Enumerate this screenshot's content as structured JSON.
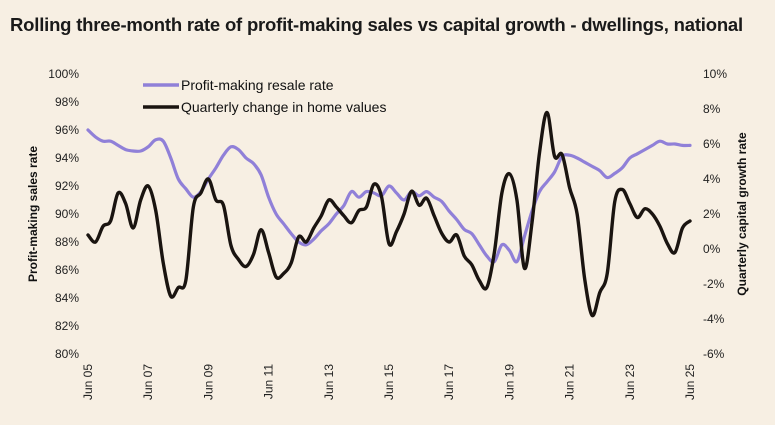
{
  "chart_data": {
    "type": "line",
    "title": "Rolling three-month rate of profit-making sales vs capital growth - dwellings, national",
    "xlabel": "",
    "ylabel": "Profit-making sales rate",
    "y2label": "Quarterly capital growth rate",
    "ylim": [
      80,
      100
    ],
    "y2lim": [
      -6,
      10
    ],
    "y_ticks": [
      "80%",
      "82%",
      "84%",
      "86%",
      "88%",
      "90%",
      "92%",
      "94%",
      "96%",
      "98%",
      "100%"
    ],
    "y2_ticks": [
      "-6%",
      "-4%",
      "-2%",
      "0%",
      "2%",
      "4%",
      "6%",
      "8%",
      "10%"
    ],
    "x_ticks": [
      "Jun 05",
      "Jun 07",
      "Jun 09",
      "Jun 11",
      "Jun 13",
      "Jun 15",
      "Jun 17",
      "Jun 19",
      "Jun 21",
      "Jun 23",
      "Jun 25"
    ],
    "x_range": [
      "Jun 05",
      "Jun 25"
    ],
    "grid": false,
    "legend_position": "top-left",
    "x": [
      2005.5,
      2005.75,
      2006.0,
      2006.25,
      2006.5,
      2006.75,
      2007.0,
      2007.25,
      2007.5,
      2007.75,
      2008.0,
      2008.25,
      2008.5,
      2008.75,
      2009.0,
      2009.25,
      2009.5,
      2009.75,
      2010.0,
      2010.25,
      2010.5,
      2010.75,
      2011.0,
      2011.25,
      2011.5,
      2011.75,
      2012.0,
      2012.25,
      2012.5,
      2012.75,
      2013.0,
      2013.25,
      2013.5,
      2013.75,
      2014.0,
      2014.25,
      2014.5,
      2014.75,
      2015.0,
      2015.25,
      2015.5,
      2015.75,
      2016.0,
      2016.25,
      2016.5,
      2016.75,
      2017.0,
      2017.25,
      2017.5,
      2017.75,
      2018.0,
      2018.25,
      2018.5,
      2018.75,
      2019.0,
      2019.25,
      2019.5,
      2019.75,
      2020.0,
      2020.25,
      2020.5,
      2020.75,
      2021.0,
      2021.25,
      2021.5,
      2021.75,
      2022.0,
      2022.25,
      2022.5,
      2022.75,
      2023.0,
      2023.25,
      2023.5,
      2023.75,
      2024.0,
      2024.25,
      2024.5,
      2024.75,
      2025.0,
      2025.25,
      2025.5
    ],
    "series": [
      {
        "name": "Profit-making resale rate",
        "axis": "left",
        "color": "#9080d8",
        "values": [
          96.0,
          95.5,
          95.2,
          95.2,
          94.9,
          94.6,
          94.5,
          94.5,
          94.8,
          95.3,
          95.2,
          94.0,
          92.5,
          91.8,
          91.2,
          91.6,
          92.5,
          93.3,
          94.2,
          94.8,
          94.6,
          94.0,
          93.6,
          92.8,
          91.2,
          90.0,
          89.3,
          88.6,
          88.0,
          87.8,
          88.2,
          88.8,
          89.3,
          90.0,
          90.6,
          91.6,
          91.2,
          91.6,
          91.5,
          91.3,
          92.0,
          91.5,
          91.0,
          91.6,
          91.3,
          91.6,
          91.2,
          90.9,
          90.2,
          89.6,
          88.9,
          88.6,
          87.8,
          87.0,
          86.6,
          87.8,
          87.4,
          86.6,
          88.4,
          90.2,
          91.6,
          92.3,
          93.0,
          94.1,
          94.2,
          94.0,
          93.7,
          93.4,
          93.1,
          92.6,
          92.9,
          93.3,
          94.0,
          94.3,
          94.6,
          94.9,
          95.2,
          95.0,
          95.0,
          94.9,
          94.9
        ]
      },
      {
        "name": "Quarterly change in home values",
        "axis": "right",
        "color": "#1a1410",
        "values": [
          0.8,
          0.4,
          1.3,
          1.6,
          3.2,
          2.6,
          1.2,
          2.8,
          3.6,
          2.2,
          -0.8,
          -2.7,
          -2.2,
          -1.8,
          2.4,
          3.2,
          4.0,
          2.8,
          2.5,
          0.2,
          -0.6,
          -1.0,
          -0.3,
          1.1,
          -0.2,
          -1.6,
          -1.4,
          -0.8,
          0.7,
          0.4,
          1.2,
          1.9,
          2.8,
          2.4,
          1.9,
          1.5,
          2.2,
          2.4,
          3.7,
          3.0,
          0.3,
          1.0,
          2.0,
          3.3,
          2.5,
          2.9,
          1.9,
          0.9,
          0.4,
          0.8,
          -0.4,
          -0.9,
          -1.8,
          -2.2,
          -0.2,
          3.2,
          4.3,
          2.8,
          -1.1,
          1.5,
          5.5,
          7.8,
          5.3,
          5.4,
          3.5,
          2.0,
          -1.7,
          -3.8,
          -2.5,
          -1.4,
          2.7,
          3.4,
          2.6,
          1.8,
          2.3,
          2.0,
          1.3,
          0.3,
          -0.2,
          1.2,
          1.6
        ]
      }
    ]
  },
  "legend": [
    {
      "label": "Profit-making resale rate",
      "color": "#9080d8"
    },
    {
      "label": "Quarterly change in home values",
      "color": "#1a1410"
    }
  ]
}
